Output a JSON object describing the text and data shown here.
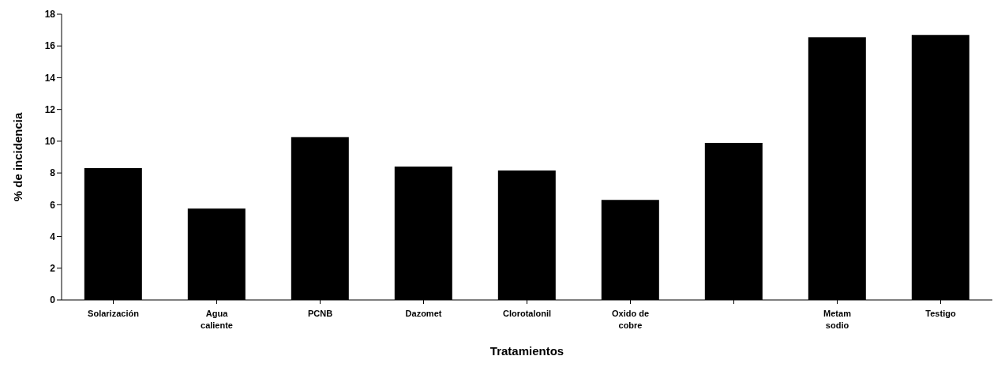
{
  "chart_data": {
    "type": "bar",
    "xlabel": "Tratamientos",
    "ylabel": "% de incidencia",
    "categories": [
      "Solarización",
      "Agua caliente",
      "PCNB",
      "Dazomet",
      "Clorotalonil",
      "Oxido de cobre",
      null,
      "Metam sodio",
      "Testigo"
    ],
    "values": [
      8.3,
      5.75,
      10.25,
      8.4,
      8.15,
      6.3,
      9.9,
      16.55,
      16.7
    ],
    "color": "#000000",
    "ylim": [
      0,
      18
    ],
    "yticks": [
      0,
      2,
      4,
      6,
      8,
      10,
      12,
      14,
      16,
      18
    ],
    "grid": false
  }
}
